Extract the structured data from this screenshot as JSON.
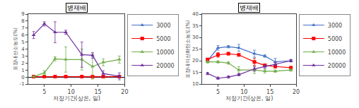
{
  "chart_data": [
    {
      "type": "line",
      "title": "병재배",
      "xlabel": "저장기간(상온, 일)",
      "ylabel": "포장내산소농도(%)",
      "xlim": [
        2,
        20
      ],
      "xticks": [
        5,
        10,
        15,
        20
      ],
      "ylim": [
        -1,
        9
      ],
      "yticks": [
        -1,
        0,
        1,
        2,
        3,
        4,
        5,
        6,
        7,
        8,
        9
      ],
      "grid": false,
      "legend": "upper right",
      "x": [
        3,
        5,
        7,
        9,
        12,
        14,
        16,
        19
      ],
      "series": [
        {
          "name": "3000",
          "color": "#4472C4",
          "marker": "triangle",
          "values": [
            0.05,
            0.05,
            0.05,
            0.05,
            0.05,
            0.05,
            0.05,
            0.05
          ],
          "yerr": [
            0.05,
            0.05,
            0.05,
            0.05,
            0.05,
            0.05,
            0.05,
            0.05
          ]
        },
        {
          "name": "5000",
          "color": "#FF0000",
          "marker": "square",
          "values": [
            0.05,
            0.05,
            0.05,
            0.05,
            0.05,
            0.05,
            0.05,
            0.05
          ],
          "yerr": [
            0.05,
            0.05,
            0.05,
            0.05,
            0.05,
            0.05,
            0.05,
            0.05
          ]
        },
        {
          "name": "10000",
          "color": "#70AD47",
          "marker": "triangle",
          "values": [
            0.05,
            0.6,
            2.6,
            2.5,
            2.5,
            1.5,
            2.1,
            2.5
          ],
          "yerr": [
            0.05,
            0.3,
            0.3,
            1.8,
            1.5,
            1.8,
            0.5,
            0.5
          ]
        },
        {
          "name": "20000",
          "color": "#7030A0",
          "marker": "triangle",
          "values": [
            6.0,
            7.6,
            6.4,
            6.4,
            3.2,
            3.1,
            0.5,
            0.1
          ],
          "yerr": [
            0.5,
            0.3,
            1.5,
            0.3,
            1.8,
            0.4,
            0.4,
            0.5
          ]
        }
      ]
    },
    {
      "type": "line",
      "title": "병재배",
      "xlabel": "저장기간(상온, 일)",
      "ylabel": "포장내이산화탄소농도(%)",
      "xlim": [
        2,
        20
      ],
      "xticks": [
        5,
        10,
        15,
        20
      ],
      "ylim": [
        10,
        40
      ],
      "yticks": [
        10,
        15,
        20,
        25,
        30,
        35,
        40
      ],
      "grid": false,
      "legend": "upper right",
      "x": [
        3,
        5,
        7,
        9,
        12,
        14,
        16,
        19
      ],
      "series": [
        {
          "name": "3000",
          "color": "#4472C4",
          "marker": "triangle",
          "values": [
            20.0,
            25.5,
            26.0,
            25.5,
            23.0,
            22.0,
            19.5,
            20.0
          ],
          "yerr": [
            0.5,
            1.0,
            0.5,
            1.5,
            1.5,
            0.5,
            1.5,
            0.5
          ]
        },
        {
          "name": "5000",
          "color": "#FF0000",
          "marker": "square",
          "values": [
            20.5,
            22.5,
            23.0,
            22.5,
            19.5,
            18.0,
            17.5,
            17.0
          ],
          "yerr": [
            0.5,
            1.0,
            0.5,
            0.5,
            1.5,
            0.5,
            0.5,
            0.5
          ]
        },
        {
          "name": "10000",
          "color": "#70AD47",
          "marker": "triangle",
          "values": [
            19.5,
            19.5,
            19.0,
            16.0,
            16.0,
            15.5,
            15.5,
            16.0
          ],
          "yerr": [
            0.5,
            0.5,
            0.5,
            1.5,
            1.5,
            0.8,
            0.5,
            0.5
          ]
        },
        {
          "name": "20000",
          "color": "#7030A0",
          "marker": "triangle",
          "values": [
            14.5,
            12.5,
            13.0,
            14.0,
            16.5,
            17.5,
            18.5,
            20.0
          ],
          "yerr": [
            0.5,
            0.5,
            0.5,
            0.5,
            1.0,
            0.8,
            0.8,
            0.5
          ]
        }
      ]
    }
  ]
}
